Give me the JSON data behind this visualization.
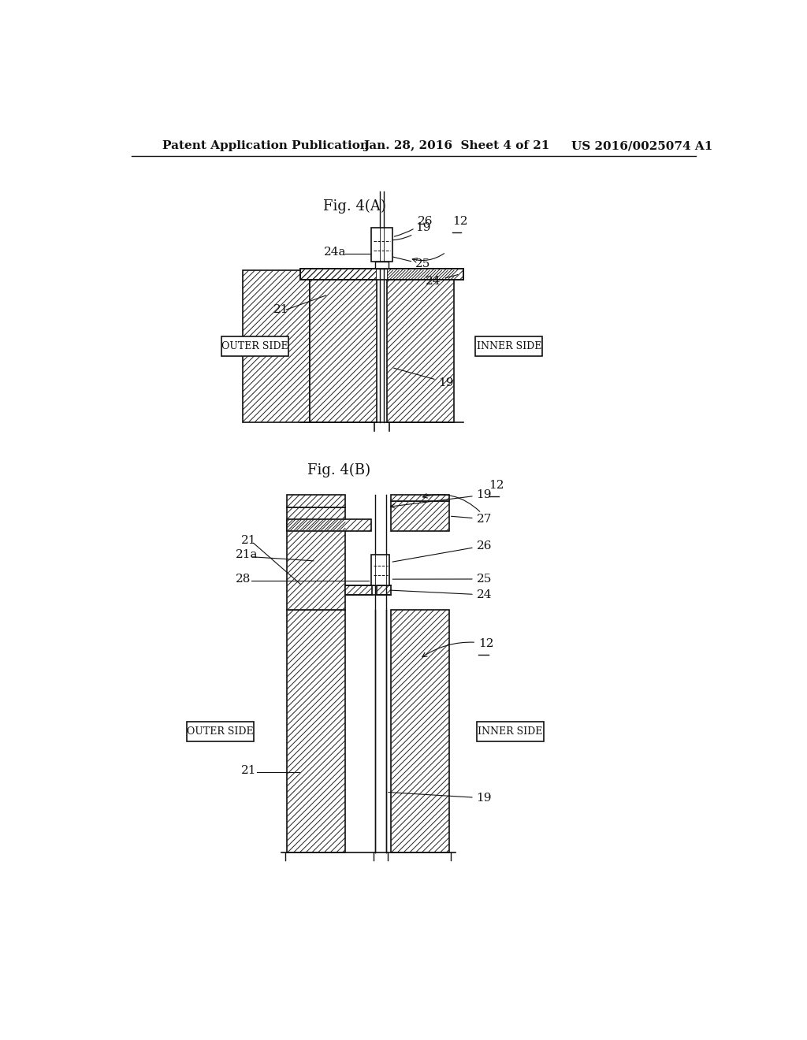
{
  "bg_color": "#f0efeb",
  "header_text": "Patent Application Publication",
  "header_date": "Jan. 28, 2016  Sheet 4 of 21",
  "header_patent": "US 2016/0025074 A1",
  "fig_a_title": "Fig. 4(A)",
  "fig_b_title": "Fig. 4(B)",
  "text_color": "#111111",
  "hatch_color": "#222222",
  "line_color": "#111111"
}
